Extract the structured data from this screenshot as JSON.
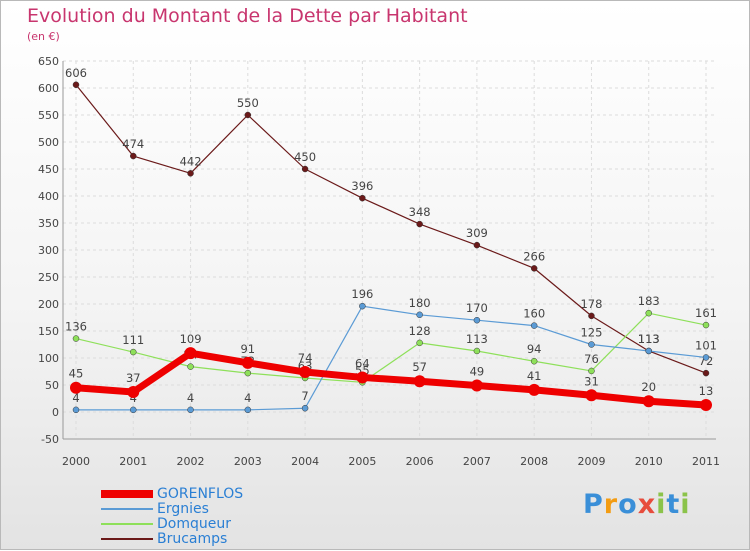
{
  "title": "Evolution du Montant de la Dette par Habitant",
  "subtitle": "(en €)",
  "logo": {
    "letters": [
      "P",
      "r",
      "o",
      "x",
      "i",
      "t",
      "i"
    ],
    "colors": [
      "#3a8fd8",
      "#f39c12",
      "#3a8fd8",
      "#e74c3c",
      "#8bc34a",
      "#3a8fd8",
      "#8bc34a"
    ]
  },
  "chart_data": {
    "type": "line",
    "title": "Evolution du Montant de la Dette par Habitant",
    "ylabel": "(en €)",
    "xlabel": "",
    "x": [
      "2000",
      "2001",
      "2002",
      "2003",
      "2004",
      "2005",
      "2006",
      "2007",
      "2008",
      "2009",
      "2010",
      "2011"
    ],
    "ylim": [
      -50,
      650
    ],
    "yticks": [
      "-50",
      "0",
      "50",
      "100",
      "150",
      "200",
      "250",
      "300",
      "350",
      "400",
      "450",
      "500",
      "550",
      "600",
      "650"
    ],
    "series": [
      {
        "name": "Brucamps",
        "color": "#6b1a1a",
        "values": [
          606,
          474,
          442,
          550,
          450,
          396,
          348,
          309,
          266,
          178,
          113,
          72
        ],
        "labels": [
          "606",
          "474",
          "442",
          "550",
          "450",
          "396",
          "348",
          "309",
          "266",
          "178",
          "113",
          "72"
        ]
      },
      {
        "name": "Domqueur",
        "color": "#8ee05a",
        "values": [
          136,
          111,
          84,
          72,
          63,
          55,
          128,
          113,
          94,
          76,
          183,
          161
        ],
        "labels": [
          "136",
          "111",
          "84",
          "72",
          "63",
          "55",
          "128",
          "113",
          "94",
          "76",
          "183",
          "161"
        ]
      },
      {
        "name": "Ergnies",
        "color": "#5b9bd5",
        "values": [
          4,
          4,
          4,
          4,
          7,
          196,
          180,
          170,
          160,
          125,
          113,
          101
        ],
        "labels": [
          "4",
          "4",
          "4",
          "4",
          "7",
          "196",
          "180",
          "170",
          "160",
          "125",
          "113",
          "101"
        ]
      },
      {
        "name": "GORENFLOS",
        "color": "#ee0000",
        "values": [
          45,
          37,
          109,
          91,
          74,
          64,
          57,
          49,
          41,
          31,
          20,
          13
        ],
        "labels": [
          "45",
          "37",
          "109",
          "91",
          "74",
          "64",
          "57",
          "49",
          "41",
          "31",
          "20",
          "13"
        ]
      }
    ],
    "legend": [
      "GORENFLOS",
      "Ergnies",
      "Domqueur",
      "Brucamps"
    ],
    "legend_position": "bottom-left"
  }
}
